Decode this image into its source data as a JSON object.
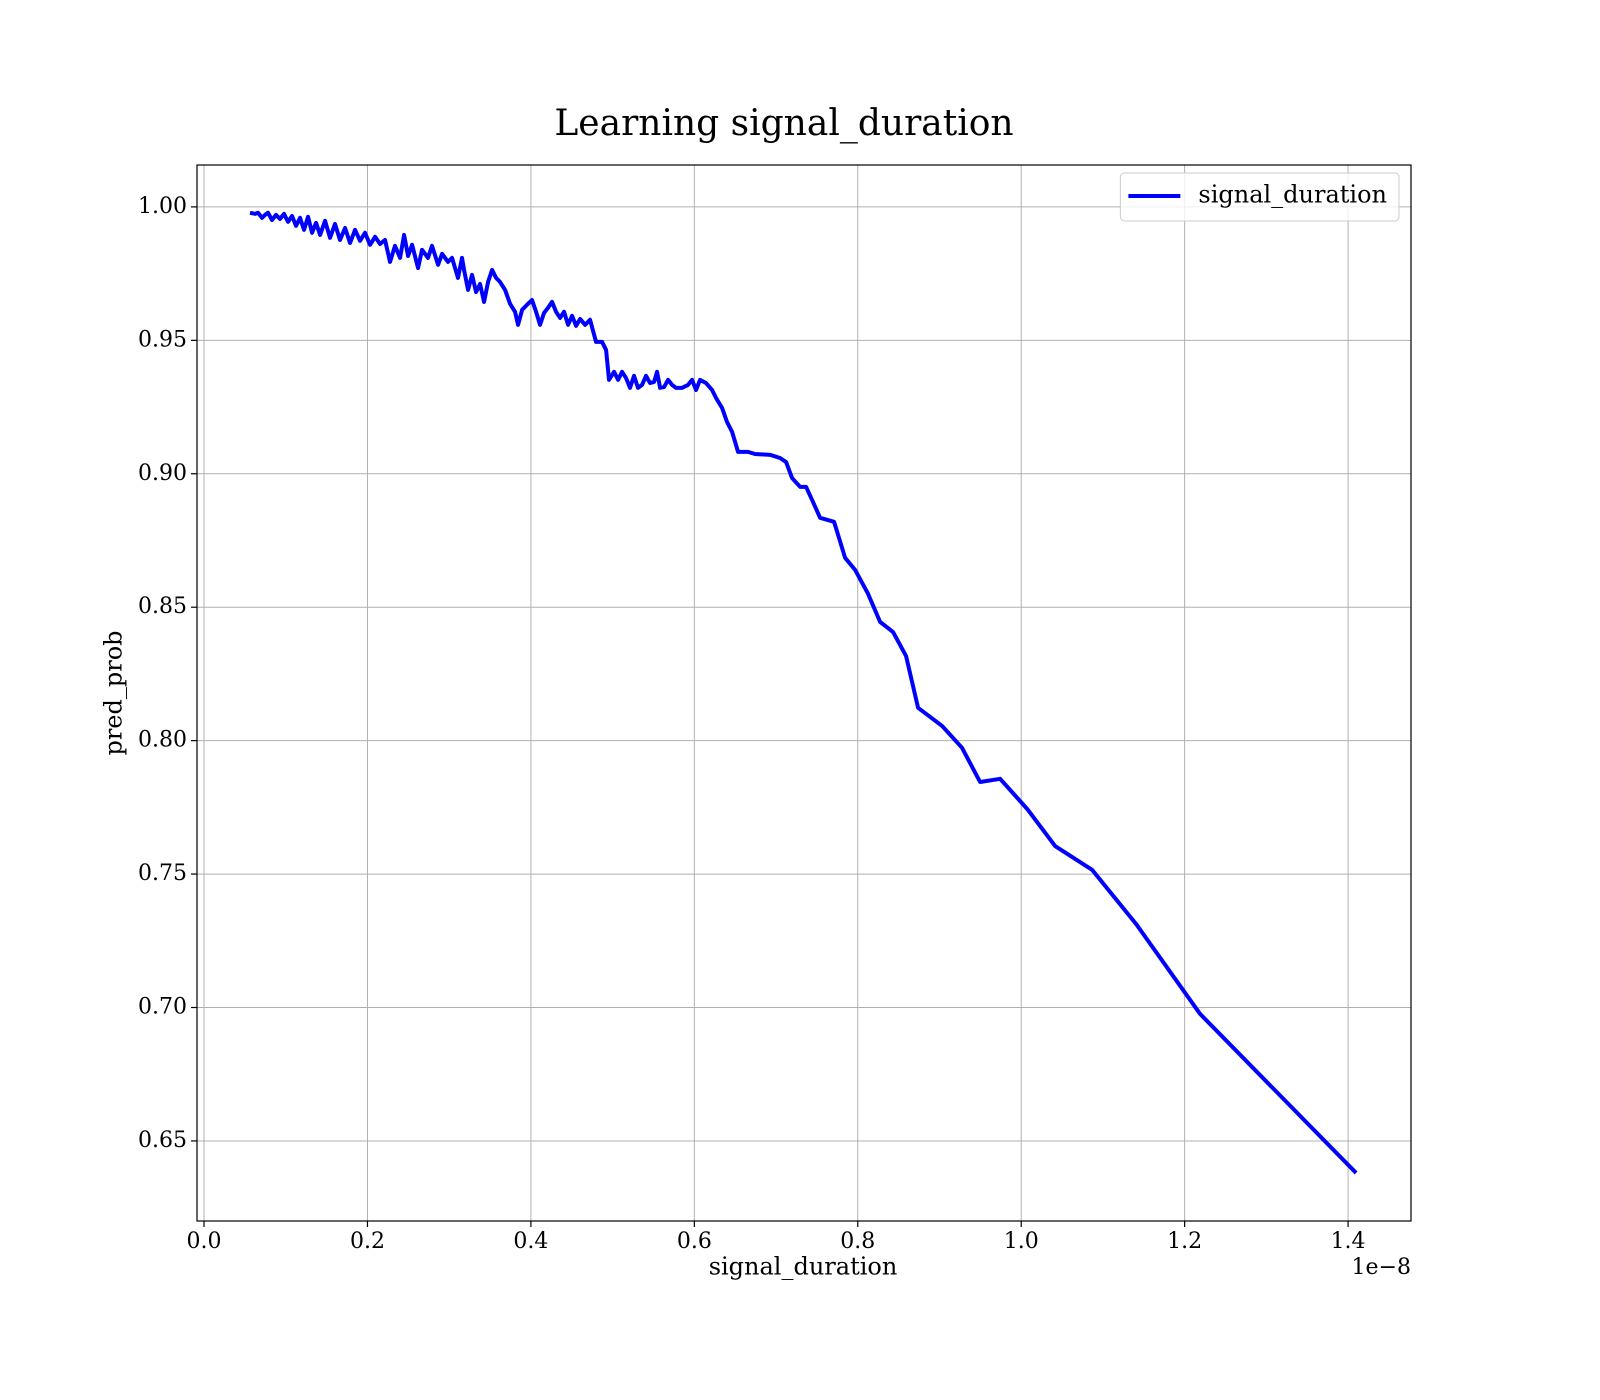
{
  "chart_data": {
    "type": "line",
    "title": "Learning signal_duration",
    "x_label": "signal_duration",
    "y_label": "pred_prob",
    "x_offset_label": "1e−8",
    "xlim": [
      -0.0086,
      1.477
    ],
    "ylim": [
      0.62,
      1.0157
    ],
    "xticks": [
      {
        "value": 0,
        "label": "0.0"
      },
      0.2,
      0.4,
      0.6,
      0.8,
      {
        "value": 1,
        "label": "1.0"
      },
      1.2,
      1.4
    ],
    "yticks": [
      0.65,
      {
        "value": 0.7,
        "label": "0.70"
      },
      0.75,
      {
        "value": 0.8,
        "label": "0.80"
      },
      0.85,
      {
        "value": 0.9,
        "label": "0.90"
      },
      0.95,
      {
        "value": 1,
        "label": "1.00"
      }
    ],
    "grid": true,
    "legend": "upper right",
    "series": [
      {
        "name": "signal_duration",
        "color": "#0000ff",
        "x": [
          0.0563,
          0.0624,
          0.0661,
          0.071,
          0.0747,
          0.0783,
          0.0832,
          0.0881,
          0.093,
          0.0979,
          0.1028,
          0.1077,
          0.1126,
          0.1175,
          0.1224,
          0.1273,
          0.1322,
          0.1371,
          0.142,
          0.1481,
          0.1542,
          0.1603,
          0.1664,
          0.1726,
          0.1787,
          0.1848,
          0.1909,
          0.197,
          0.2032,
          0.2093,
          0.2154,
          0.2215,
          0.2276,
          0.2337,
          0.2399,
          0.2448,
          0.2497,
          0.2546,
          0.2619,
          0.2668,
          0.2741,
          0.279,
          0.2864,
          0.2913,
          0.2986,
          0.3035,
          0.3108,
          0.3157,
          0.3182,
          0.3231,
          0.328,
          0.3329,
          0.3378,
          0.3427,
          0.3476,
          0.3525,
          0.3574,
          0.3622,
          0.3684,
          0.3745,
          0.3806,
          0.3843,
          0.3892,
          0.3965,
          0.4014,
          0.4063,
          0.4112,
          0.4161,
          0.421,
          0.4259,
          0.4308,
          0.4357,
          0.4406,
          0.4455,
          0.4504,
          0.4553,
          0.4602,
          0.4663,
          0.4724,
          0.4797,
          0.4871,
          0.492,
          0.4956,
          0.5018,
          0.5067,
          0.5115,
          0.5164,
          0.5213,
          0.5262,
          0.5311,
          0.536,
          0.5409,
          0.5458,
          0.5507,
          0.5544,
          0.5581,
          0.563,
          0.5679,
          0.5727,
          0.5776,
          0.585,
          0.5923,
          0.5972,
          0.6021,
          0.607,
          0.6143,
          0.6217,
          0.6266,
          0.6339,
          0.64,
          0.6462,
          0.6535,
          0.6657,
          0.6743,
          0.6927,
          0.7049,
          0.7123,
          0.7196,
          0.7294,
          0.7367,
          0.7441,
          0.7539,
          0.771,
          0.7845,
          0.7967,
          0.8126,
          0.8273,
          0.8432,
          0.8591,
          0.8738,
          0.9032,
          0.9276,
          0.9497,
          0.9742,
          1.0084,
          1.0415,
          1.0867,
          1.1406,
          1.2189,
          1.4098
        ],
        "values": [
          0.9978,
          0.9974,
          0.9978,
          0.9959,
          0.997,
          0.9978,
          0.9951,
          0.997,
          0.9955,
          0.9974,
          0.9944,
          0.9966,
          0.9929,
          0.9959,
          0.9914,
          0.9963,
          0.9903,
          0.994,
          0.9895,
          0.9948,
          0.9884,
          0.9936,
          0.9876,
          0.9921,
          0.9865,
          0.9914,
          0.9873,
          0.9903,
          0.9858,
          0.9888,
          0.9861,
          0.9876,
          0.9794,
          0.9854,
          0.9809,
          0.9895,
          0.9816,
          0.9858,
          0.9771,
          0.9839,
          0.9809,
          0.9854,
          0.9783,
          0.9824,
          0.9794,
          0.9809,
          0.9734,
          0.9809,
          0.9764,
          0.9689,
          0.9745,
          0.9681,
          0.9711,
          0.9644,
          0.9719,
          0.9764,
          0.9734,
          0.9719,
          0.9689,
          0.9637,
          0.9607,
          0.9558,
          0.9614,
          0.9637,
          0.9651,
          0.9607,
          0.9558,
          0.9603,
          0.9622,
          0.9644,
          0.9607,
          0.9584,
          0.9607,
          0.9558,
          0.9592,
          0.9554,
          0.958,
          0.9558,
          0.9577,
          0.9494,
          0.9494,
          0.9464,
          0.9352,
          0.9382,
          0.9352,
          0.9382,
          0.9359,
          0.9322,
          0.9367,
          0.9322,
          0.9333,
          0.9367,
          0.934,
          0.9344,
          0.9382,
          0.9322,
          0.9325,
          0.9352,
          0.9333,
          0.9322,
          0.9322,
          0.9333,
          0.9352,
          0.9314,
          0.9352,
          0.934,
          0.9314,
          0.9284,
          0.9247,
          0.9194,
          0.9157,
          0.9082,
          0.9082,
          0.9074,
          0.9071,
          0.9059,
          0.9044,
          0.8984,
          0.8951,
          0.8951,
          0.8902,
          0.8835,
          0.882,
          0.8685,
          0.864,
          0.855,
          0.8445,
          0.8407,
          0.8317,
          0.8123,
          0.8055,
          0.7973,
          0.7845,
          0.7857,
          0.774,
          0.7605,
          0.7516,
          0.7313,
          0.6976,
          0.638
        ]
      }
    ]
  }
}
